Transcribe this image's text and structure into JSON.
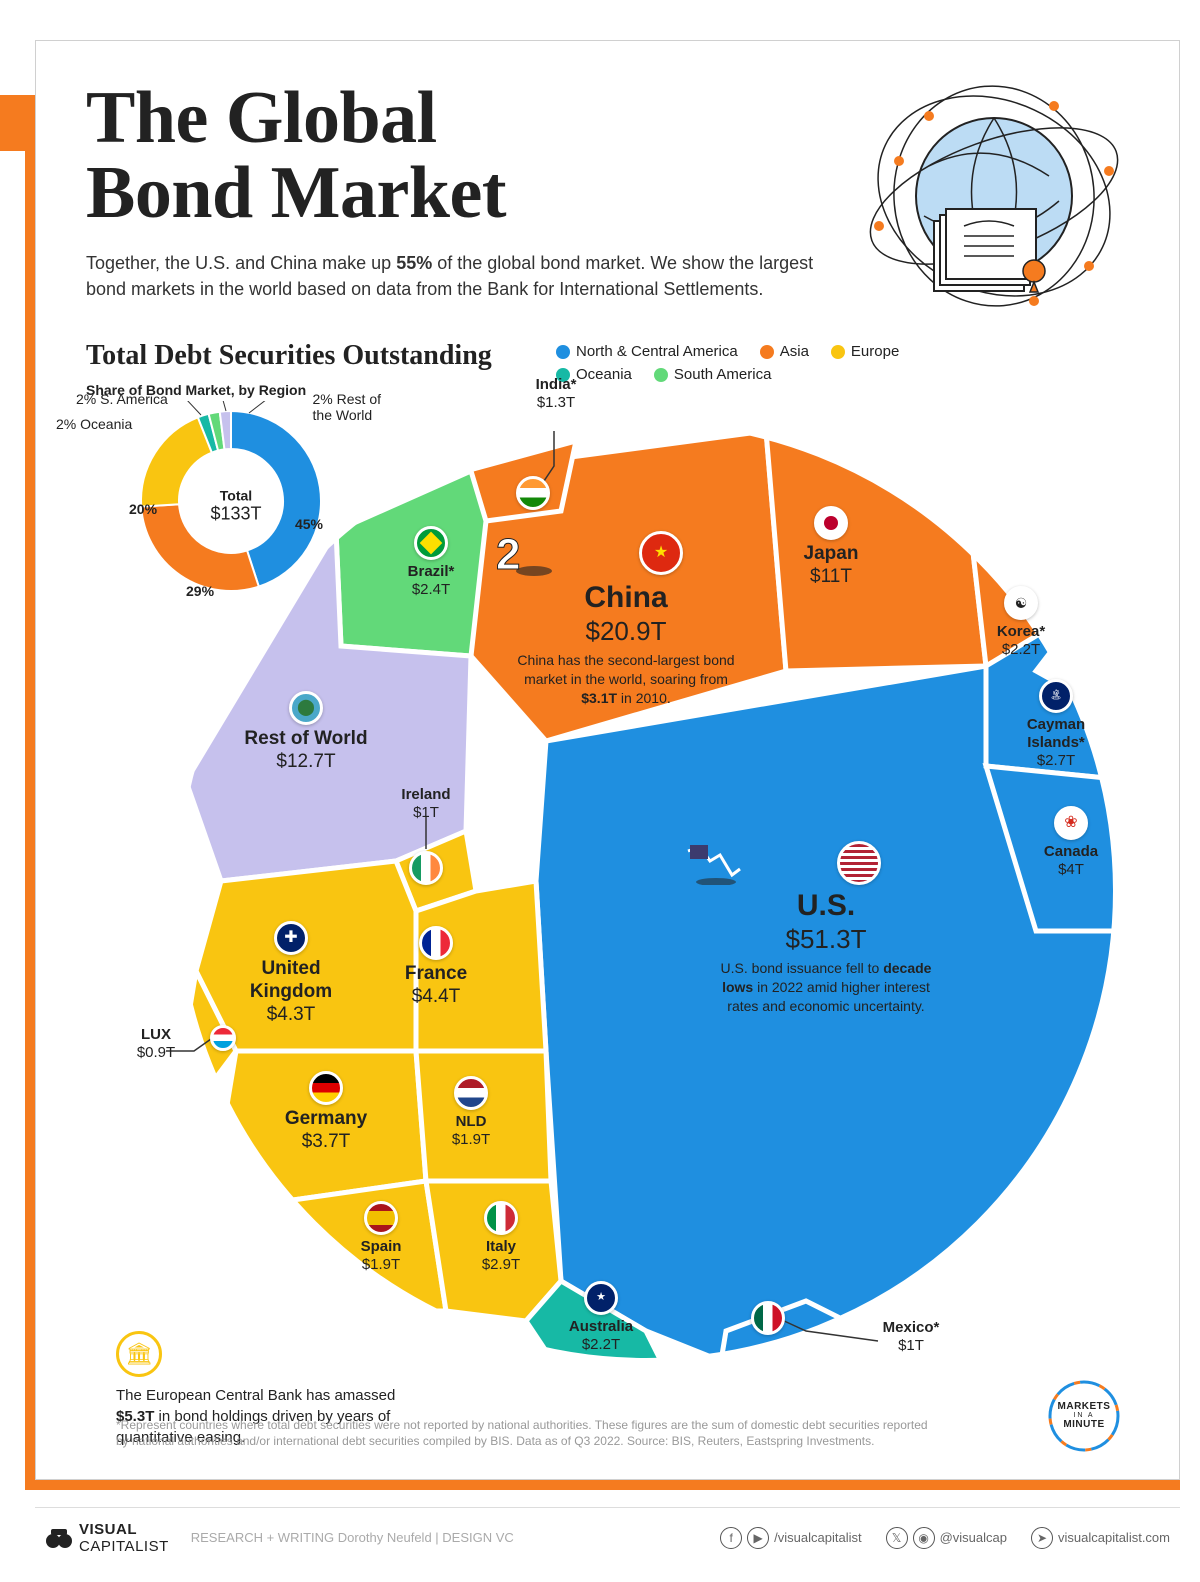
{
  "title_line1": "The Global",
  "title_line2": "Bond Market",
  "subtitle_a": "Together, the U.S. and China make up ",
  "subtitle_b": "55%",
  "subtitle_c": " of the global bond market. We show the largest bond markets in the world based on data from the Bank for International Settlements.",
  "section_title": "Total Debt Securities Outstanding",
  "donut_caption": "Share of Bond Market, by Region",
  "donut": {
    "total_label": "Total",
    "total_value": "$133T",
    "slices": [
      {
        "label": "North & Central America",
        "short": "",
        "pct": 45,
        "color": "#1f8fe0"
      },
      {
        "label": "Asia",
        "short": "",
        "pct": 29,
        "color": "#f57b1f"
      },
      {
        "label": "Europe",
        "short": "",
        "pct": 20,
        "color": "#f9c511"
      },
      {
        "label": "Oceania",
        "short": "Oceania",
        "pct": 2,
        "color": "#17b9a5"
      },
      {
        "label": "S. America",
        "short": "S. America",
        "pct": 2,
        "color": "#62d979"
      },
      {
        "label": "Rest of the World",
        "short": "Rest of\nthe World",
        "pct": 2,
        "color": "#c6c1ed"
      }
    ],
    "ann": {
      "na": "45%",
      "asia": "29%",
      "eu": "20%",
      "oc": "2% Oceania",
      "sa": "2% S. America",
      "row": "2% Rest of\nthe World"
    }
  },
  "legend": [
    {
      "label": "North & Central America",
      "color": "#1f8fe0"
    },
    {
      "label": "Asia",
      "color": "#f57b1f"
    },
    {
      "label": "Europe",
      "color": "#f9c511"
    },
    {
      "label": "Oceania",
      "color": "#17b9a5"
    },
    {
      "label": "South America",
      "color": "#62d979"
    }
  ],
  "colors": {
    "na": "#1f8fe0",
    "asia": "#f57b1f",
    "eu": "#f9c511",
    "oc": "#17b9a5",
    "sa": "#62d979",
    "row": "#c6c1ed",
    "stroke": "#ffffff"
  },
  "cells": {
    "us": {
      "name": "U.S.",
      "value": "$51.3T",
      "note_a": "U.S. bond issuance fell to ",
      "note_b": "decade lows",
      "note_c": " in 2022 amid higher interest rates and economic uncertainty."
    },
    "china": {
      "name": "China",
      "value": "$20.9T",
      "note_a": "China has the second-largest bond market in the world, soaring from ",
      "note_b": "$3.1T",
      "note_c": " in 2010."
    },
    "japan": {
      "name": "Japan",
      "value": "$11T"
    },
    "korea": {
      "name": "Korea*",
      "value": "$2.2T"
    },
    "cayman": {
      "name": "Cayman Islands*",
      "value": "$2.7T"
    },
    "canada": {
      "name": "Canada",
      "value": "$4T"
    },
    "mexico": {
      "name": "Mexico*",
      "value": "$1T"
    },
    "australia": {
      "name": "Australia",
      "value": "$2.2T"
    },
    "italy": {
      "name": "Italy",
      "value": "$2.9T"
    },
    "spain": {
      "name": "Spain",
      "value": "$1.9T"
    },
    "nld": {
      "name": "NLD",
      "value": "$1.9T"
    },
    "germany": {
      "name": "Germany",
      "value": "$3.7T"
    },
    "france": {
      "name": "France",
      "value": "$4.4T"
    },
    "uk": {
      "name": "United Kingdom",
      "value": "$4.3T"
    },
    "lux": {
      "name": "LUX",
      "value": "$0.9T",
      "callout": true
    },
    "ireland": {
      "name": "Ireland",
      "value": "$1T",
      "callout": true
    },
    "india": {
      "name": "India*",
      "value": "$1.3T",
      "callout": true
    },
    "brazil": {
      "name": "Brazil*",
      "value": "$2.4T"
    },
    "row": {
      "name": "Rest of World",
      "value": "$12.7T"
    }
  },
  "ecb": {
    "text_a": "The European Central Bank has amassed ",
    "text_b": "$5.3T",
    "text_c": " in bond holdings driven by years of quantitative easing."
  },
  "footnote": "*Represent countries where total debt securities were not reported by national authorities. These figures are the sum of domestic debt securities reported by national authorities and/or international debt securities compiled by BIS. Data as of Q3 2022. Source: BIS, Reuters, Eastspring Investments.",
  "miam": {
    "l1": "MARKETS",
    "l2": "IN A",
    "l3": "MINUTE"
  },
  "footer": {
    "brand_a": "VISUAL",
    "brand_b": "CAPITALIST",
    "credits": "RESEARCH + WRITING  Dorothy Neufeld   |   DESIGN  VC",
    "soc1": "/visualcapitalist",
    "soc2": "@visualcap",
    "soc3": "visualcapitalist.com"
  }
}
